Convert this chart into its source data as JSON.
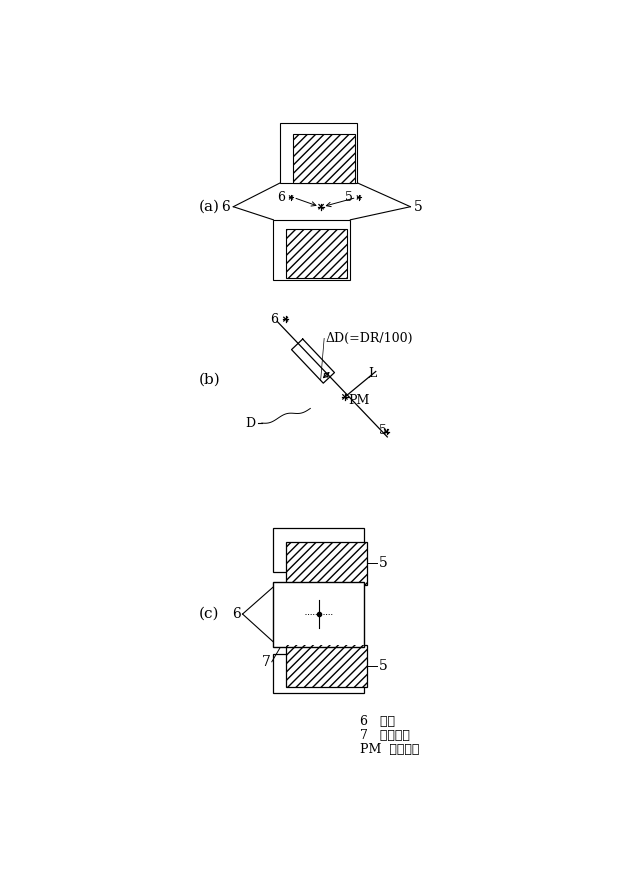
{
  "bg_color": "#ffffff",
  "fig_width": 6.22,
  "fig_height": 8.82,
  "panel_a_label": "(a)",
  "panel_b_label": "(b)",
  "panel_c_label": "(c)",
  "legend_6": "6   電極",
  "legend_7": "7   電子部品",
  "legend_PM": "PM  実装位置"
}
